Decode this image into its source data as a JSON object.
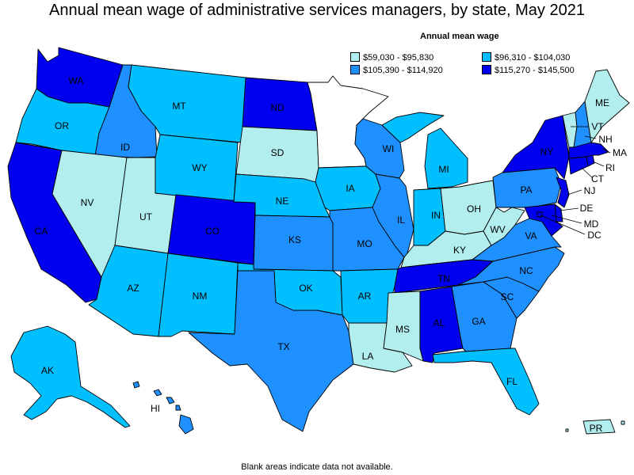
{
  "title": "Annual mean wage of administrative services managers, by state, May 2021",
  "legend": {
    "title": "Annual mean wage",
    "items": [
      {
        "label": "$59,030 - $95,830",
        "color": "#b2eeee"
      },
      {
        "label": "$96,310 - $104,030",
        "color": "#00bfff"
      },
      {
        "label": "$105,390 - $114,920",
        "color": "#1e90ff"
      },
      {
        "label": "$115,270 - $145,500",
        "color": "#0000ee"
      }
    ]
  },
  "footnote": "Blank areas indicate data not available.",
  "states": {
    "WA": {
      "label": "WA",
      "tier": 3
    },
    "OR": {
      "label": "OR",
      "tier": 1
    },
    "CA": {
      "label": "CA",
      "tier": 3
    },
    "ID": {
      "label": "ID",
      "tier": 2
    },
    "NV": {
      "label": "NV",
      "tier": 0
    },
    "UT": {
      "label": "UT",
      "tier": 0
    },
    "AZ": {
      "label": "AZ",
      "tier": 1
    },
    "MT": {
      "label": "MT",
      "tier": 1
    },
    "WY": {
      "label": "WY",
      "tier": 1
    },
    "CO": {
      "label": "CO",
      "tier": 3
    },
    "NM": {
      "label": "NM",
      "tier": 1
    },
    "ND": {
      "label": "ND",
      "tier": 3
    },
    "SD": {
      "label": "SD",
      "tier": 0
    },
    "NE": {
      "label": "NE",
      "tier": 1
    },
    "KS": {
      "label": "KS",
      "tier": 2
    },
    "OK": {
      "label": "OK",
      "tier": 1
    },
    "TX": {
      "label": "TX",
      "tier": 2
    },
    "IA": {
      "label": "IA",
      "tier": 1
    },
    "MO": {
      "label": "MO",
      "tier": 2
    },
    "AR": {
      "label": "AR",
      "tier": 1
    },
    "LA": {
      "label": "LA",
      "tier": 0
    },
    "WI": {
      "label": "WI",
      "tier": 2
    },
    "IL": {
      "label": "IL",
      "tier": 2
    },
    "MI": {
      "label": "MI",
      "tier": 1
    },
    "IN": {
      "label": "IN",
      "tier": 1
    },
    "OH": {
      "label": "OH",
      "tier": 0
    },
    "KY": {
      "label": "KY",
      "tier": 0
    },
    "TN": {
      "label": "TN",
      "tier": 3
    },
    "MS": {
      "label": "MS",
      "tier": 0
    },
    "AL": {
      "label": "AL",
      "tier": 3
    },
    "GA": {
      "label": "GA",
      "tier": 2
    },
    "FL": {
      "label": "FL",
      "tier": 1
    },
    "SC": {
      "label": "SC",
      "tier": 2
    },
    "NC": {
      "label": "NC",
      "tier": 2
    },
    "VA": {
      "label": "VA",
      "tier": 2
    },
    "WV": {
      "label": "WV",
      "tier": 0
    },
    "PA": {
      "label": "PA",
      "tier": 2
    },
    "NY": {
      "label": "NY",
      "tier": 3
    },
    "NJ": {
      "label": "NJ",
      "tier": 3
    },
    "DE": {
      "label": "DE",
      "tier": 3
    },
    "MD": {
      "label": "MD",
      "tier": 3
    },
    "DC": {
      "label": "DC",
      "tier": 3
    },
    "CT": {
      "label": "CT",
      "tier": 3
    },
    "RI": {
      "label": "RI",
      "tier": 3
    },
    "MA": {
      "label": "MA",
      "tier": 3
    },
    "VT": {
      "label": "VT",
      "tier": 0
    },
    "NH": {
      "label": "NH",
      "tier": 2
    },
    "ME": {
      "label": "ME",
      "tier": 0
    },
    "AK": {
      "label": "AK",
      "tier": 1
    },
    "HI": {
      "label": "HI",
      "tier": 2
    },
    "PR": {
      "label": "PR",
      "tier": 0
    },
    "MN": {
      "label": "",
      "tier": null
    }
  }
}
